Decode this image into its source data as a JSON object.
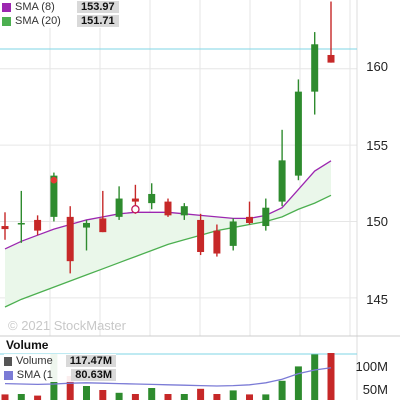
{
  "price_legend": {
    "sma8": {
      "label": "SMA (8)",
      "value": "153.97",
      "color": "#9c27b0"
    },
    "sma20": {
      "label": "SMA (20)",
      "value": "151.71",
      "color": "#4caf50"
    }
  },
  "volume_legend": {
    "title": "Volume",
    "volume": {
      "label": "Volume",
      "value": "117.47M",
      "color": "#555555"
    },
    "sma": {
      "label": "SMA (1",
      "value": "80.63M",
      "color": "#7b7bd6"
    }
  },
  "price_axis": {
    "ticks": [
      "160",
      "155",
      "150",
      "145"
    ]
  },
  "volume_axis": {
    "ticks": [
      "100M",
      "50M"
    ]
  },
  "watermark": "© 2021 StockMaster",
  "colors": {
    "up": "#2e8b2e",
    "down": "#c62828",
    "area": "#eaf7ea",
    "grid": "#e6e6e6",
    "ref": "#7fd6e6"
  },
  "chart_data": {
    "type": "candlestick",
    "price_range": [
      142.5,
      164.5
    ],
    "candles": [
      {
        "o": 149.7,
        "h": 150.6,
        "l": 148.8,
        "c": 149.5
      },
      {
        "o": 149.8,
        "h": 152.0,
        "l": 148.6,
        "c": 149.9
      },
      {
        "o": 150.1,
        "h": 150.4,
        "l": 149.1,
        "c": 149.4
      },
      {
        "o": 150.3,
        "h": 153.2,
        "l": 150.0,
        "c": 153.0
      },
      {
        "o": 150.3,
        "h": 151.0,
        "l": 146.6,
        "c": 147.4
      },
      {
        "o": 149.6,
        "h": 150.1,
        "l": 148.1,
        "c": 149.9
      },
      {
        "o": 150.2,
        "h": 152.0,
        "l": 149.3,
        "c": 149.3
      },
      {
        "o": 150.3,
        "h": 152.3,
        "l": 150.1,
        "c": 151.5
      },
      {
        "o": 151.5,
        "h": 152.4,
        "l": 150.5,
        "c": 151.3
      },
      {
        "o": 151.2,
        "h": 152.5,
        "l": 150.8,
        "c": 151.8
      },
      {
        "o": 151.3,
        "h": 151.5,
        "l": 150.3,
        "c": 150.4
      },
      {
        "o": 150.4,
        "h": 151.2,
        "l": 150.1,
        "c": 151.0
      },
      {
        "o": 150.1,
        "h": 150.5,
        "l": 147.8,
        "c": 148.0
      },
      {
        "o": 149.4,
        "h": 149.8,
        "l": 147.7,
        "c": 147.9
      },
      {
        "o": 148.4,
        "h": 150.2,
        "l": 148.1,
        "c": 150.0
      },
      {
        "o": 150.3,
        "h": 151.3,
        "l": 149.8,
        "c": 149.9
      },
      {
        "o": 149.7,
        "h": 151.5,
        "l": 149.4,
        "c": 150.9
      },
      {
        "o": 151.3,
        "h": 156.0,
        "l": 151.0,
        "c": 154.0
      },
      {
        "o": 153.0,
        "h": 159.3,
        "l": 152.7,
        "c": 158.5
      },
      {
        "o": 158.5,
        "h": 162.4,
        "l": 157.0,
        "c": 161.6
      },
      {
        "o": 160.9,
        "h": 164.4,
        "l": 160.4,
        "c": 160.4
      }
    ],
    "sma8": [
      148.2,
      148.7,
      149.1,
      149.5,
      149.8,
      150.1,
      150.3,
      150.5,
      150.6,
      150.6,
      150.6,
      150.5,
      150.4,
      150.3,
      150.2,
      150.2,
      150.4,
      150.9,
      152.1,
      153.3,
      153.97
    ],
    "sma20": [
      144.4,
      144.9,
      145.3,
      145.7,
      146.1,
      146.5,
      146.9,
      147.3,
      147.7,
      148.1,
      148.5,
      148.8,
      149.1,
      149.4,
      149.6,
      149.8,
      150.0,
      150.3,
      150.8,
      151.2,
      151.71
    ],
    "volume_range": [
      0,
      120
    ],
    "volumes": [
      14,
      15,
      11,
      115,
      60,
      35,
      25,
      18,
      15,
      30,
      15,
      15,
      28,
      15,
      24,
      14,
      14,
      48,
      84,
      114,
      117.47
    ],
    "volume_sma": [
      41,
      40,
      39,
      40,
      42,
      43,
      42,
      41,
      40,
      39,
      38,
      37,
      36,
      35,
      36,
      38,
      43,
      52,
      66,
      75,
      80.63
    ]
  }
}
